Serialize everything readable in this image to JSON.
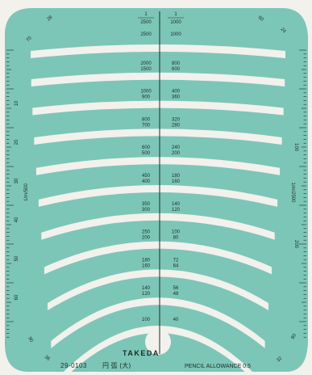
{
  "colors": {
    "plate": "#7cc6b7",
    "plate_dark": "#5fae9f",
    "cutout": "#f2f1ec",
    "ink": "#1d2a27"
  },
  "top_scale": {
    "left_header": [
      "1",
      "2500"
    ],
    "right_header": [
      "1",
      "1000"
    ]
  },
  "arcs": [
    {
      "left": [
        "2500"
      ],
      "right": [
        "1000"
      ]
    },
    {
      "left": [
        "2000",
        "1500"
      ],
      "right": [
        "800",
        "600"
      ]
    },
    {
      "left": [
        "1000",
        "900"
      ],
      "right": [
        "400",
        "360"
      ]
    },
    {
      "left": [
        "800",
        "700"
      ],
      "right": [
        "320",
        "280"
      ]
    },
    {
      "left": [
        "600",
        "500"
      ],
      "right": [
        "240",
        "200"
      ]
    },
    {
      "left": [
        "450",
        "400"
      ],
      "right": [
        "180",
        "160"
      ]
    },
    {
      "left": [
        "350",
        "300"
      ],
      "right": [
        "140",
        "120"
      ]
    },
    {
      "left": [
        "250",
        "200"
      ],
      "right": [
        "100",
        "80"
      ]
    },
    {
      "left": [
        "180",
        "160"
      ],
      "right": [
        "72",
        "64"
      ]
    },
    {
      "left": [
        "140",
        "120"
      ],
      "right": [
        "56",
        "48"
      ]
    },
    {
      "left": [
        "100"
      ],
      "right": [
        "40"
      ]
    }
  ],
  "left_ruler": {
    "numbers": [
      "10",
      "20",
      "30",
      "40",
      "50",
      "60"
    ],
    "caption": "1/m/500"
  },
  "right_ruler": {
    "numbers": [
      "100",
      "200"
    ],
    "caption": "1/m/2500"
  },
  "corners": {
    "top_left_inner": "28",
    "top_left_outer": "70",
    "top_right_inner": "60",
    "top_right_outer": "24",
    "bottom_left_inner": "90",
    "bottom_left_outer": "36",
    "bottom_right_inner": "32",
    "bottom_right_outer": "80"
  },
  "brand": "TAKEDA",
  "model": "29-0103",
  "product_name": "円 弧 (大)",
  "pencil_allowance": "PENCIL ALLOWANCE 0.5"
}
